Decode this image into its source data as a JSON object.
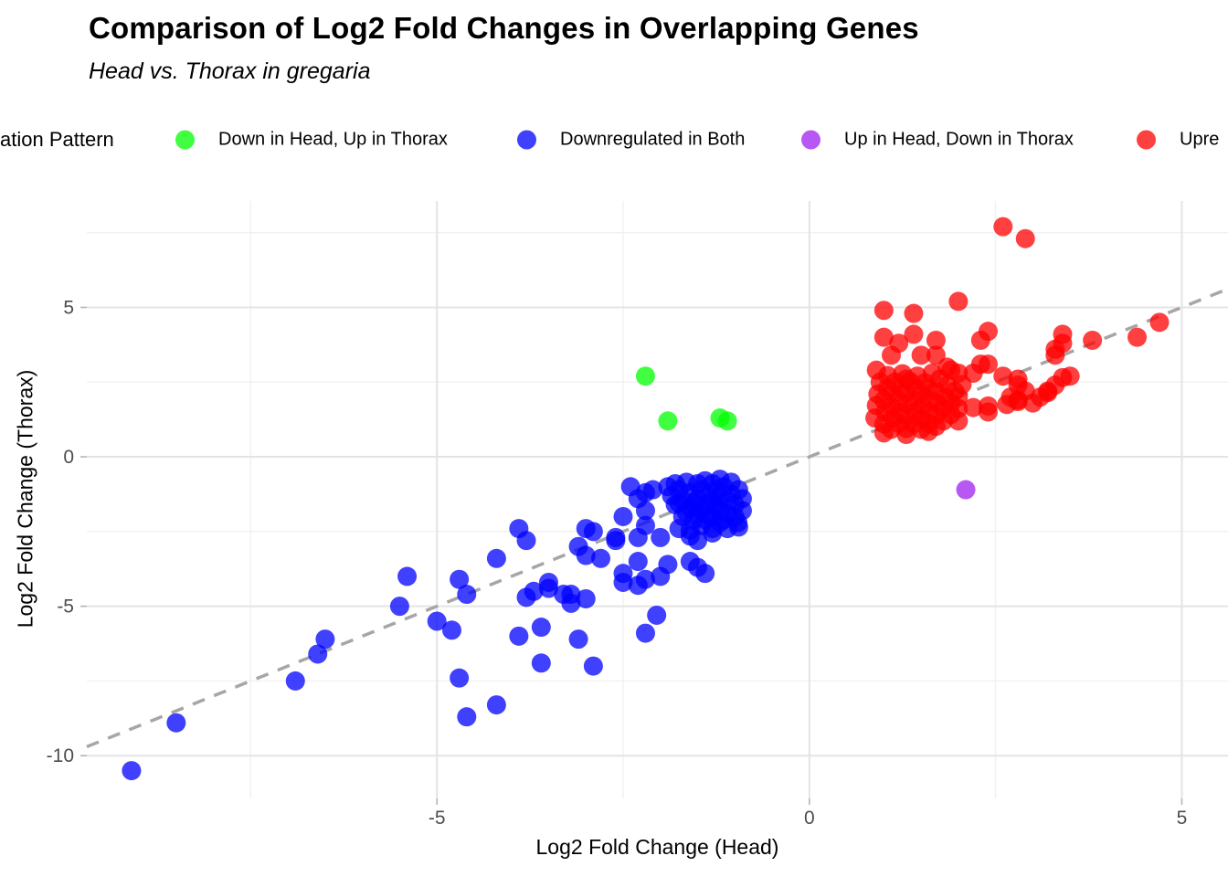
{
  "header": {
    "title": "Comparison of Log2 Fold Changes in Overlapping Genes",
    "subtitle": "Head vs. Thorax in gregaria"
  },
  "legend": {
    "title": "ation Pattern",
    "items": [
      {
        "label": "Down in Head, Up in Thorax",
        "color": "#00ff00"
      },
      {
        "label": "Downregulated in Both",
        "color": "#0000ff"
      },
      {
        "label": "Up in Head, Down in Thorax",
        "color": "#a020f0"
      },
      {
        "label": "Upre",
        "color": "#ff0000"
      }
    ],
    "dot_opacity": 0.75
  },
  "chart_data": {
    "type": "scatter",
    "title": "Comparison of Log2 Fold Changes in Overlapping Genes",
    "subtitle": "Head vs. Thorax in gregaria",
    "xlabel": "Log2 Fold Change (Head)",
    "ylabel": "Log2 Fold Change (Thorax)",
    "xlim": [
      -9.7,
      5.62
    ],
    "ylim": [
      -11.43,
      8.56
    ],
    "xticks": [
      -5,
      0,
      5
    ],
    "yticks": [
      -10,
      -5,
      0,
      5
    ],
    "minor_xticks": [
      -7.5,
      -2.5,
      2.5
    ],
    "minor_yticks": [
      -7.5,
      -2.5,
      2.5,
      7.5
    ],
    "grid": {
      "major_color": "#e4e4e4",
      "minor_color": "#f1f1f1"
    },
    "tick_label_color": "#4d4d4d",
    "identity_line": {
      "from": "panel-left",
      "to": "panel-right",
      "dashed": true,
      "color": "#a6a6a6"
    },
    "point_opacity": 0.75,
    "point_radius": 10.5,
    "series": [
      {
        "name": "Down in Head, Up in Thorax",
        "color": "#00ff00",
        "points": [
          [
            -2.2,
            2.7
          ],
          [
            -1.9,
            1.2
          ],
          [
            -1.2,
            1.3
          ],
          [
            -1.1,
            1.2
          ]
        ]
      },
      {
        "name": "Downregulated in Both",
        "color": "#0000ff",
        "points": [
          [
            -9.1,
            -10.5
          ],
          [
            -8.5,
            -8.9
          ],
          [
            -6.9,
            -7.5
          ],
          [
            -6.5,
            -6.1
          ],
          [
            -6.6,
            -6.6
          ],
          [
            -5.5,
            -5.0
          ],
          [
            -5.4,
            -4.0
          ],
          [
            -5.0,
            -5.5
          ],
          [
            -4.8,
            -5.8
          ],
          [
            -4.7,
            -4.1
          ],
          [
            -4.6,
            -4.6
          ],
          [
            -4.7,
            -7.4
          ],
          [
            -4.6,
            -8.7
          ],
          [
            -4.2,
            -8.3
          ],
          [
            -4.2,
            -3.4
          ],
          [
            -3.9,
            -2.4
          ],
          [
            -3.8,
            -2.8
          ],
          [
            -3.8,
            -4.7
          ],
          [
            -3.7,
            -4.5
          ],
          [
            -3.5,
            -4.4
          ],
          [
            -3.9,
            -6.0
          ],
          [
            -3.6,
            -5.7
          ],
          [
            -3.6,
            -6.9
          ],
          [
            -3.2,
            -4.6
          ],
          [
            -3.2,
            -4.9
          ],
          [
            -3.1,
            -6.1
          ],
          [
            -2.9,
            -7.0
          ],
          [
            -3.0,
            -2.4
          ],
          [
            -2.9,
            -2.5
          ],
          [
            -3.1,
            -3.0
          ],
          [
            -3.0,
            -3.3
          ],
          [
            -2.8,
            -3.4
          ],
          [
            -3.3,
            -4.6
          ],
          [
            -3.5,
            -4.2
          ],
          [
            -3.0,
            -4.75
          ],
          [
            -2.4,
            -1.0
          ],
          [
            -2.2,
            -1.2
          ],
          [
            -2.1,
            -1.1
          ],
          [
            -2.3,
            -1.4
          ],
          [
            -2.5,
            -2.0
          ],
          [
            -2.2,
            -1.8
          ],
          [
            -2.6,
            -2.7
          ],
          [
            -2.6,
            -2.8
          ],
          [
            -2.3,
            -2.7
          ],
          [
            -2.0,
            -2.7
          ],
          [
            -2.2,
            -2.3
          ],
          [
            -2.3,
            -3.5
          ],
          [
            -2.2,
            -4.1
          ],
          [
            -2.5,
            -3.9
          ],
          [
            -2.5,
            -4.2
          ],
          [
            -1.9,
            -3.6
          ],
          [
            -2.0,
            -4.0
          ],
          [
            -1.6,
            -3.5
          ],
          [
            -1.5,
            -3.7
          ],
          [
            -1.4,
            -3.9
          ],
          [
            -2.3,
            -4.3
          ],
          [
            -2.05,
            -5.3
          ],
          [
            -2.2,
            -5.9
          ],
          [
            -1.6,
            -2.65
          ],
          [
            -1.5,
            -2.8
          ],
          [
            -1.3,
            -2.4
          ],
          [
            -1.1,
            -2.4
          ],
          [
            -1.75,
            -2.4
          ],
          [
            -0.96,
            -2.2
          ],
          [
            -1.9,
            -1.0
          ],
          [
            -1.85,
            -1.3
          ],
          [
            -1.8,
            -0.9
          ],
          [
            -1.8,
            -1.6
          ],
          [
            -1.75,
            -1.1
          ],
          [
            -1.7,
            -1.45
          ],
          [
            -1.7,
            -2.0
          ],
          [
            -1.65,
            -0.85
          ],
          [
            -1.6,
            -1.2
          ],
          [
            -1.6,
            -1.7
          ],
          [
            -1.55,
            -2.1
          ],
          [
            -1.5,
            -0.9
          ],
          [
            -1.5,
            -1.4
          ],
          [
            -1.5,
            -1.9
          ],
          [
            -1.45,
            -1.1
          ],
          [
            -1.4,
            -0.8
          ],
          [
            -1.4,
            -1.6
          ],
          [
            -1.4,
            -2.1
          ],
          [
            -1.35,
            -1.3
          ],
          [
            -1.3,
            -0.9
          ],
          [
            -1.3,
            -1.5
          ],
          [
            -1.3,
            -2.0
          ],
          [
            -1.25,
            -1.1
          ],
          [
            -1.2,
            -0.75
          ],
          [
            -1.2,
            -1.35
          ],
          [
            -1.2,
            -1.8
          ],
          [
            -1.2,
            -2.2
          ],
          [
            -1.15,
            -1.0
          ],
          [
            -1.1,
            -1.5
          ],
          [
            -1.1,
            -1.9
          ],
          [
            -1.05,
            -0.85
          ],
          [
            -1.05,
            -1.25
          ],
          [
            -1.0,
            -1.6
          ],
          [
            -1.0,
            -2.0
          ],
          [
            -0.95,
            -1.1
          ],
          [
            -0.95,
            -2.35
          ],
          [
            -0.9,
            -1.4
          ],
          [
            -0.9,
            -1.8
          ],
          [
            -1.55,
            -1.55
          ],
          [
            -1.45,
            -1.75
          ],
          [
            -1.35,
            -1.95
          ],
          [
            -1.65,
            -1.85
          ],
          [
            -1.75,
            -1.55
          ],
          [
            -1.25,
            -1.6
          ],
          [
            -1.15,
            -2.1
          ],
          [
            -1.45,
            -2.3
          ],
          [
            -1.6,
            -2.45
          ],
          [
            -1.3,
            -2.55
          ]
        ]
      },
      {
        "name": "Up in Head, Down in Thorax",
        "color": "#a020f0",
        "points": [
          [
            2.1,
            -1.1
          ]
        ]
      },
      {
        "name": "Upre",
        "color": "#ff0000",
        "points": [
          [
            2.6,
            7.7
          ],
          [
            2.9,
            7.3
          ],
          [
            2.0,
            5.2
          ],
          [
            1.0,
            4.9
          ],
          [
            1.4,
            4.8
          ],
          [
            4.7,
            4.5
          ],
          [
            4.4,
            4.0
          ],
          [
            3.8,
            3.9
          ],
          [
            3.4,
            4.1
          ],
          [
            3.4,
            3.8
          ],
          [
            2.4,
            4.2
          ],
          [
            2.3,
            3.9
          ],
          [
            1.0,
            4.0
          ],
          [
            1.2,
            3.8
          ],
          [
            1.4,
            4.1
          ],
          [
            1.7,
            3.9
          ],
          [
            2.3,
            3.1
          ],
          [
            2.4,
            3.1
          ],
          [
            2.2,
            2.8
          ],
          [
            2.6,
            2.7
          ],
          [
            2.8,
            2.6
          ],
          [
            2.4,
            1.7
          ],
          [
            2.4,
            1.5
          ],
          [
            2.65,
            1.75
          ],
          [
            2.8,
            1.9
          ],
          [
            3.0,
            1.8
          ],
          [
            3.1,
            2.0
          ],
          [
            3.2,
            2.15
          ],
          [
            1.9,
            2.9
          ],
          [
            2.0,
            2.8
          ],
          [
            3.3,
            3.6
          ],
          [
            3.3,
            3.4
          ],
          [
            3.4,
            2.65
          ],
          [
            3.5,
            2.7
          ],
          [
            3.3,
            2.4
          ],
          [
            3.2,
            2.2
          ],
          [
            2.8,
            2.4
          ],
          [
            2.9,
            2.2
          ],
          [
            2.7,
            2.0
          ],
          [
            2.8,
            1.85
          ],
          [
            1.7,
            3.4
          ],
          [
            1.5,
            3.4
          ],
          [
            1.1,
            3.4
          ],
          [
            0.9,
            2.9
          ],
          [
            1.3,
            2.6
          ],
          [
            1.0,
            0.8
          ],
          [
            1.3,
            0.75
          ],
          [
            1.6,
            0.85
          ],
          [
            2.0,
            1.2
          ],
          [
            2.2,
            1.65
          ],
          [
            0.88,
            1.3
          ],
          [
            0.9,
            1.72
          ],
          [
            0.92,
            2.1
          ],
          [
            0.95,
            2.5
          ],
          [
            1.0,
            1.1
          ],
          [
            1.02,
            1.5
          ],
          [
            1.0,
            1.9
          ],
          [
            1.05,
            2.3
          ],
          [
            1.05,
            2.72
          ],
          [
            1.1,
            0.92
          ],
          [
            1.12,
            1.3
          ],
          [
            1.1,
            1.68
          ],
          [
            1.12,
            2.1
          ],
          [
            1.15,
            2.5
          ],
          [
            1.2,
            1.12
          ],
          [
            1.22,
            1.5
          ],
          [
            1.2,
            1.88
          ],
          [
            1.22,
            2.3
          ],
          [
            1.25,
            2.78
          ],
          [
            1.3,
            0.95
          ],
          [
            1.3,
            1.35
          ],
          [
            1.32,
            1.75
          ],
          [
            1.3,
            2.15
          ],
          [
            1.35,
            2.52
          ],
          [
            1.4,
            1.1
          ],
          [
            1.42,
            1.5
          ],
          [
            1.4,
            1.9
          ],
          [
            1.42,
            2.3
          ],
          [
            1.45,
            2.7
          ],
          [
            1.5,
            0.92
          ],
          [
            1.5,
            1.3
          ],
          [
            1.52,
            1.7
          ],
          [
            1.5,
            2.1
          ],
          [
            1.55,
            2.48
          ],
          [
            1.6,
            1.12
          ],
          [
            1.6,
            1.5
          ],
          [
            1.62,
            1.9
          ],
          [
            1.6,
            2.28
          ],
          [
            1.65,
            2.8
          ],
          [
            1.7,
            1.02
          ],
          [
            1.7,
            1.4
          ],
          [
            1.72,
            1.8
          ],
          [
            1.7,
            2.2
          ],
          [
            1.75,
            2.6
          ],
          [
            1.8,
            1.2
          ],
          [
            1.8,
            1.62
          ],
          [
            1.82,
            2.0
          ],
          [
            1.85,
            2.4
          ],
          [
            1.9,
            1.42
          ],
          [
            1.9,
            1.8
          ],
          [
            1.95,
            2.2
          ],
          [
            2.0,
            1.62
          ],
          [
            2.0,
            2.0
          ],
          [
            2.05,
            2.42
          ],
          [
            1.85,
            3.0
          ]
        ]
      }
    ]
  }
}
